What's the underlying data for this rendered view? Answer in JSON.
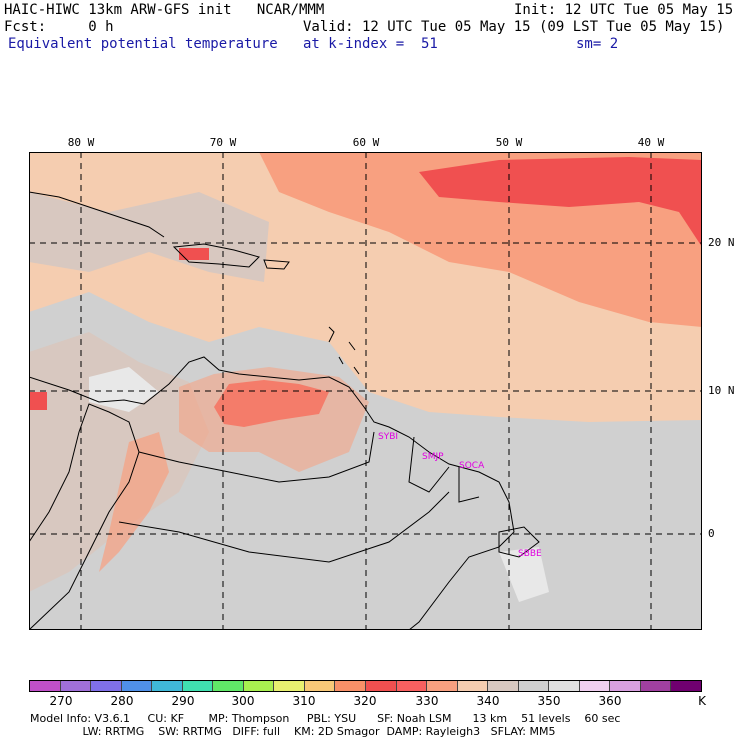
{
  "header": {
    "title": "HAIC-HIWC 13km ARW-GFS init   NCAR/MMM",
    "init": "Init: 12 UTC Tue 05 May 15",
    "fcst": "Fcst:     0 h",
    "valid": "Valid: 12 UTC Tue 05 May 15 (09 LST Tue 05 May 15)",
    "field": "Equivalent potential temperature",
    "level": "at k-index =  51",
    "smooth": "sm= 2"
  },
  "axes": {
    "lon_labels": [
      "80 W",
      "70 W",
      "60 W",
      "50 W",
      "40 W"
    ],
    "lat_labels": [
      "20 N",
      "10 N",
      "0"
    ]
  },
  "stations": [
    "SYBI",
    "SMJP",
    "SOCA",
    "SBBE"
  ],
  "colorbar": {
    "tick_labels": [
      "270",
      "280",
      "290",
      "300",
      "310",
      "320",
      "330",
      "340",
      "350",
      "360",
      "K"
    ],
    "colors": [
      "#c050c8",
      "#a070d8",
      "#8070e8",
      "#5090e8",
      "#40b8d8",
      "#40e0b0",
      "#60e868",
      "#a8f050",
      "#e8f070",
      "#f8c878",
      "#f89068",
      "#f05050",
      "#f86060",
      "#f8a080",
      "#f5cdb0",
      "#d8c8c0",
      "#d0d0d0",
      "#e0e0e0",
      "#f0d0f0",
      "#d8a0e0",
      "#a040a0",
      "#700070"
    ]
  },
  "model_info": {
    "line1": "Model Info: V3.6.1     CU: KF       MP: Thompson     PBL: YSU      SF: Noah LSM      13 km    51 levels    60 sec",
    "line2": "               LW: RRTMG    SW: RRTMG   DIFF: full    KM: 2D Smagor  DAMP: Rayleigh3   SFLAY: MM5"
  }
}
